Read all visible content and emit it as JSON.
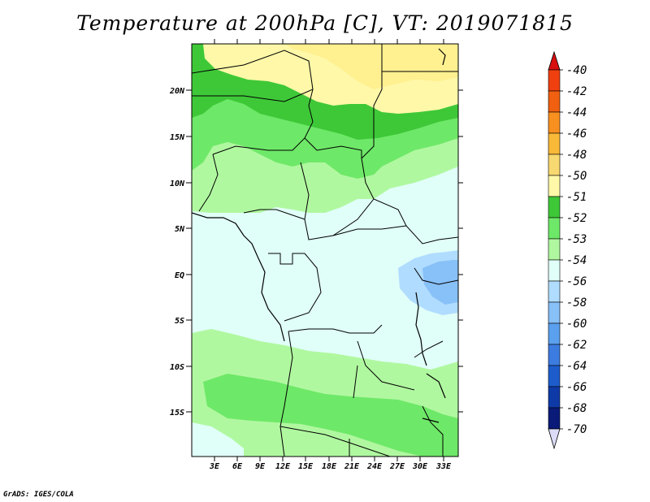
{
  "title": "Temperature at 200hPa [C], VT: 2019071815",
  "credit": "GrADS: IGES/COLA",
  "axes": {
    "lat_labels": [
      "20N",
      "15N",
      "10N",
      "5N",
      "EQ",
      "5S",
      "10S",
      "15S"
    ],
    "lon_labels": [
      "3E",
      "6E",
      "9E",
      "12E",
      "15E",
      "18E",
      "21E",
      "24E",
      "27E",
      "30E",
      "33E"
    ]
  },
  "colorbar": {
    "levels": [
      "-40",
      "-42",
      "-44",
      "-46",
      "-48",
      "-50",
      "-51",
      "-52",
      "-53",
      "-54",
      "-56",
      "-58",
      "-60",
      "-62",
      "-64",
      "-66",
      "-68",
      "-70"
    ],
    "colors": [
      "#e01010",
      "#f04010",
      "#f06010",
      "#f89020",
      "#f8b838",
      "#f8d870",
      "#fff8a8",
      "#3ec838",
      "#6ee868",
      "#b0f8a0",
      "#e0fff8",
      "#b0dcff",
      "#88c0f8",
      "#5aa0ee",
      "#3c7ce0",
      "#1e5ccc",
      "#0e3aa8",
      "#0a1a78"
    ],
    "top_arrow_color": "#d81010",
    "bottom_arrow_color": "#dcdcf8"
  },
  "field_colors": {
    "very_warm": "#fff090",
    "warm": "#fff8a8",
    "dark_green": "#3ec838",
    "mid_green": "#6ee868",
    "light_green": "#b0f8a0",
    "pale": "#e0fff8",
    "light_blue": "#b0dcff",
    "mid_blue": "#88c0f8"
  }
}
